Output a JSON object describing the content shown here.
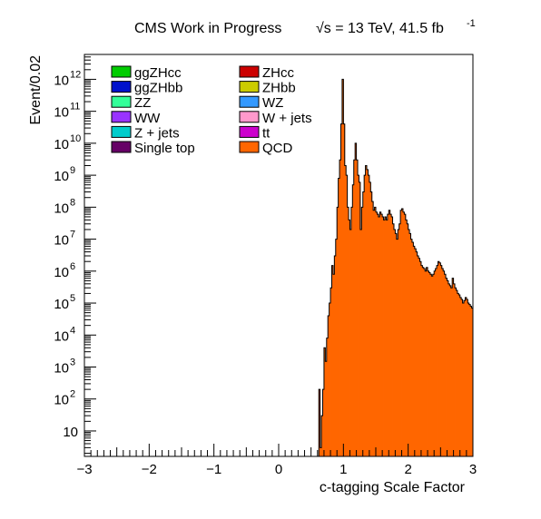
{
  "chart_data": {
    "type": "area",
    "title": "CMS Work in Progress",
    "lumi_label": "√s = 13 TeV, 41.5 fb",
    "lumi_exponent": "-1",
    "xlabel": "c-tagging Scale Factor",
    "ylabel": "Event/0.02",
    "xlim": [
      -3,
      3
    ],
    "ylim": [
      1.6,
      6000000000000.0
    ],
    "yscale": "log",
    "x_ticks": [
      "−3",
      "−2",
      "−1",
      "0",
      "1",
      "2",
      "3"
    ],
    "y_ticks": [
      {
        "mant": "10",
        "exp": ""
      },
      {
        "mant": "10",
        "exp": "2"
      },
      {
        "mant": "10",
        "exp": "3"
      },
      {
        "mant": "10",
        "exp": "4"
      },
      {
        "mant": "10",
        "exp": "5"
      },
      {
        "mant": "10",
        "exp": "6"
      },
      {
        "mant": "10",
        "exp": "7"
      },
      {
        "mant": "10",
        "exp": "8"
      },
      {
        "mant": "10",
        "exp": "9"
      },
      {
        "mant": "10",
        "exp": "10"
      },
      {
        "mant": "10",
        "exp": "11"
      },
      {
        "mant": "10",
        "exp": "12"
      }
    ],
    "legend_position": "top",
    "legend": [
      {
        "name": "ggZHcc",
        "color": "#00cc00"
      },
      {
        "name": "ZHcc",
        "color": "#cc0000"
      },
      {
        "name": "ggZHbb",
        "color": "#0011cc"
      },
      {
        "name": "ZHbb",
        "color": "#cccc00"
      },
      {
        "name": "ZZ",
        "color": "#33ff99"
      },
      {
        "name": "WZ",
        "color": "#3399ff"
      },
      {
        "name": "WW",
        "color": "#9933ff"
      },
      {
        "name": "W + jets",
        "color": "#ff99cc"
      },
      {
        "name": "Z + jets",
        "color": "#00cccc"
      },
      {
        "name": "tt",
        "color": "#cc00cc"
      },
      {
        "name": "Single top",
        "color": "#660066"
      },
      {
        "name": "QCD",
        "color": "#ff6600"
      }
    ],
    "series": [
      {
        "name": "QCD",
        "color": "#ff6600",
        "bin_width": 0.02,
        "x": [
          0.6,
          0.62,
          0.64,
          0.66,
          0.68,
          0.7,
          0.72,
          0.74,
          0.76,
          0.78,
          0.8,
          0.82,
          0.84,
          0.86,
          0.88,
          0.9,
          0.92,
          0.94,
          0.96,
          0.98,
          1.0,
          1.02,
          1.04,
          1.06,
          1.08,
          1.1,
          1.12,
          1.14,
          1.16,
          1.18,
          1.2,
          1.22,
          1.24,
          1.26,
          1.28,
          1.3,
          1.32,
          1.34,
          1.36,
          1.38,
          1.4,
          1.42,
          1.44,
          1.46,
          1.48,
          1.5,
          1.52,
          1.54,
          1.56,
          1.58,
          1.6,
          1.62,
          1.64,
          1.66,
          1.68,
          1.7,
          1.72,
          1.74,
          1.76,
          1.78,
          1.8,
          1.82,
          1.84,
          1.86,
          1.88,
          1.9,
          1.92,
          1.94,
          1.96,
          1.98,
          2.0,
          2.02,
          2.04,
          2.06,
          2.08,
          2.1,
          2.12,
          2.14,
          2.16,
          2.18,
          2.2,
          2.22,
          2.24,
          2.26,
          2.28,
          2.3,
          2.32,
          2.34,
          2.36,
          2.38,
          2.4,
          2.42,
          2.44,
          2.46,
          2.48,
          2.5,
          2.52,
          2.54,
          2.56,
          2.58,
          2.6,
          2.62,
          2.64,
          2.66,
          2.68,
          2.7,
          2.72,
          2.74,
          2.76,
          2.78,
          2.8,
          2.82,
          2.84,
          2.86,
          2.88,
          2.9,
          2.92,
          2.94,
          2.96,
          2.98
        ],
        "values": [
          0,
          200,
          3,
          30,
          200,
          4000,
          1500,
          8000,
          40000,
          100000,
          300000,
          1500000,
          800000,
          3000000,
          10000000,
          100000000,
          800000000,
          3000000000,
          40000000000,
          1000000000000,
          40000000000,
          2000000000,
          1000000000,
          100000000,
          40000000,
          20000000,
          100000000,
          500000000,
          3000000000,
          10000000000,
          3000000000,
          1000000000,
          600000000,
          20000000,
          100000000,
          300000000,
          1000000000,
          2000000000,
          1500000000,
          1000000000,
          600000000,
          300000000,
          150000000,
          80000000,
          100000000,
          70000000,
          60000000,
          50000000,
          70000000,
          60000000,
          50000000,
          40000000,
          50000000,
          40000000,
          60000000,
          80000000,
          60000000,
          50000000,
          30000000,
          20000000,
          15000000,
          10000000,
          20000000,
          30000000,
          80000000,
          90000000,
          70000000,
          60000000,
          40000000,
          30000000,
          20000000,
          15000000,
          10000000,
          8000000,
          6000000,
          5000000,
          4000000,
          3000000,
          2500000,
          2000000,
          1500000,
          1300000,
          1200000,
          1000000,
          1300000,
          1000000,
          900000,
          800000,
          700000,
          800000,
          1000000,
          1200000,
          1500000,
          2000000,
          1800000,
          1500000,
          1200000,
          1000000,
          800000,
          600000,
          500000,
          400000,
          350000,
          300000,
          600000,
          400000,
          300000,
          250000,
          200000,
          180000,
          150000,
          130000,
          100000,
          120000,
          150000,
          130000,
          100000,
          90000,
          80000,
          70000
        ]
      }
    ]
  }
}
